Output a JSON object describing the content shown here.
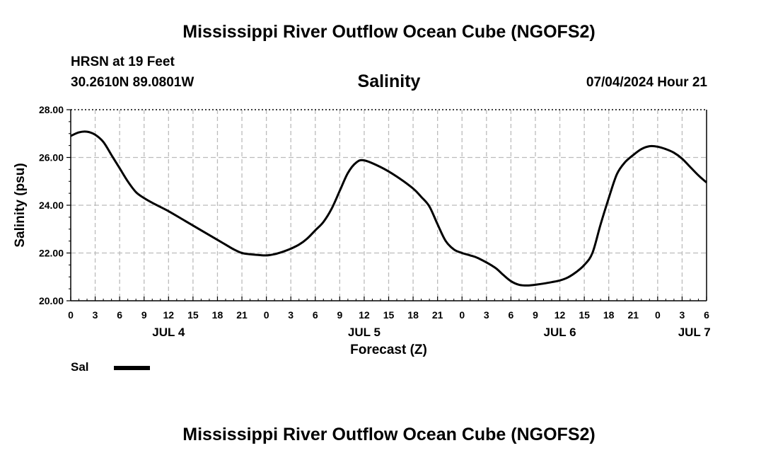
{
  "header": {
    "title": "Mississippi River Outflow Ocean Cube (NGOFS2)",
    "station": "HRSN at 19 Feet",
    "coords": "30.2610N  89.0801W",
    "chart_name": "Salinity",
    "datetime": "07/04/2024 Hour 21"
  },
  "legend": {
    "label": "Sal"
  },
  "footer": {
    "title": "Mississippi River Outflow Ocean Cube (NGOFS2)"
  },
  "colors": {
    "line": "#000000",
    "grid": "#bbbbbb",
    "frame": "#000000"
  },
  "chart_data": {
    "type": "line",
    "title": "Salinity",
    "xlabel": "Forecast (Z)",
    "ylabel": "Salinity (psu)",
    "xlim": [
      0,
      78
    ],
    "ylim": [
      20,
      28
    ],
    "yticks": [
      "20.00",
      "22.00",
      "24.00",
      "26.00",
      "28.00"
    ],
    "ytick_values": [
      20,
      22,
      24,
      26,
      28
    ],
    "xtick_labels": [
      "0",
      "3",
      "6",
      "9",
      "12",
      "15",
      "18",
      "21",
      "0",
      "3",
      "6",
      "9",
      "12",
      "15",
      "18",
      "21",
      "0",
      "3",
      "6",
      "9",
      "12",
      "15",
      "18",
      "21",
      "0",
      "3",
      "6"
    ],
    "day_labels": [
      {
        "label": "JUL 4",
        "hour": 12
      },
      {
        "label": "JUL 5",
        "hour": 36
      },
      {
        "label": "JUL 6",
        "hour": 60
      },
      {
        "label": "JUL 7",
        "hour": 76.5
      }
    ],
    "grid": true,
    "series": [
      {
        "name": "Sal",
        "x": [
          0,
          1,
          2,
          3,
          4,
          5,
          6,
          7,
          8,
          9,
          10,
          12,
          14,
          16,
          18,
          19,
          20,
          21,
          22,
          23,
          24,
          25,
          26,
          27,
          28,
          29,
          30,
          31,
          32,
          33,
          34,
          35,
          36,
          38,
          40,
          42,
          43,
          44,
          45,
          46,
          47,
          48,
          49,
          50,
          52,
          53,
          54,
          55,
          56,
          57,
          58,
          59,
          60,
          61,
          62,
          63,
          64,
          65,
          66,
          67,
          68,
          69,
          70,
          71,
          72,
          73,
          74,
          75,
          76,
          77,
          78
        ],
        "y": [
          26.9,
          27.05,
          27.08,
          26.95,
          26.65,
          26.1,
          25.55,
          25.0,
          24.55,
          24.3,
          24.1,
          23.75,
          23.35,
          22.95,
          22.55,
          22.35,
          22.15,
          22.0,
          21.95,
          21.92,
          21.9,
          21.95,
          22.05,
          22.18,
          22.35,
          22.6,
          22.95,
          23.3,
          23.85,
          24.6,
          25.35,
          25.78,
          25.88,
          25.6,
          25.2,
          24.7,
          24.35,
          23.95,
          23.2,
          22.5,
          22.15,
          22.0,
          21.9,
          21.78,
          21.4,
          21.1,
          20.82,
          20.67,
          20.64,
          20.67,
          20.72,
          20.78,
          20.85,
          20.98,
          21.2,
          21.5,
          22.0,
          23.2,
          24.3,
          25.3,
          25.8,
          26.1,
          26.35,
          26.47,
          26.45,
          26.35,
          26.2,
          25.95,
          25.6,
          25.25,
          24.95
        ]
      }
    ]
  }
}
